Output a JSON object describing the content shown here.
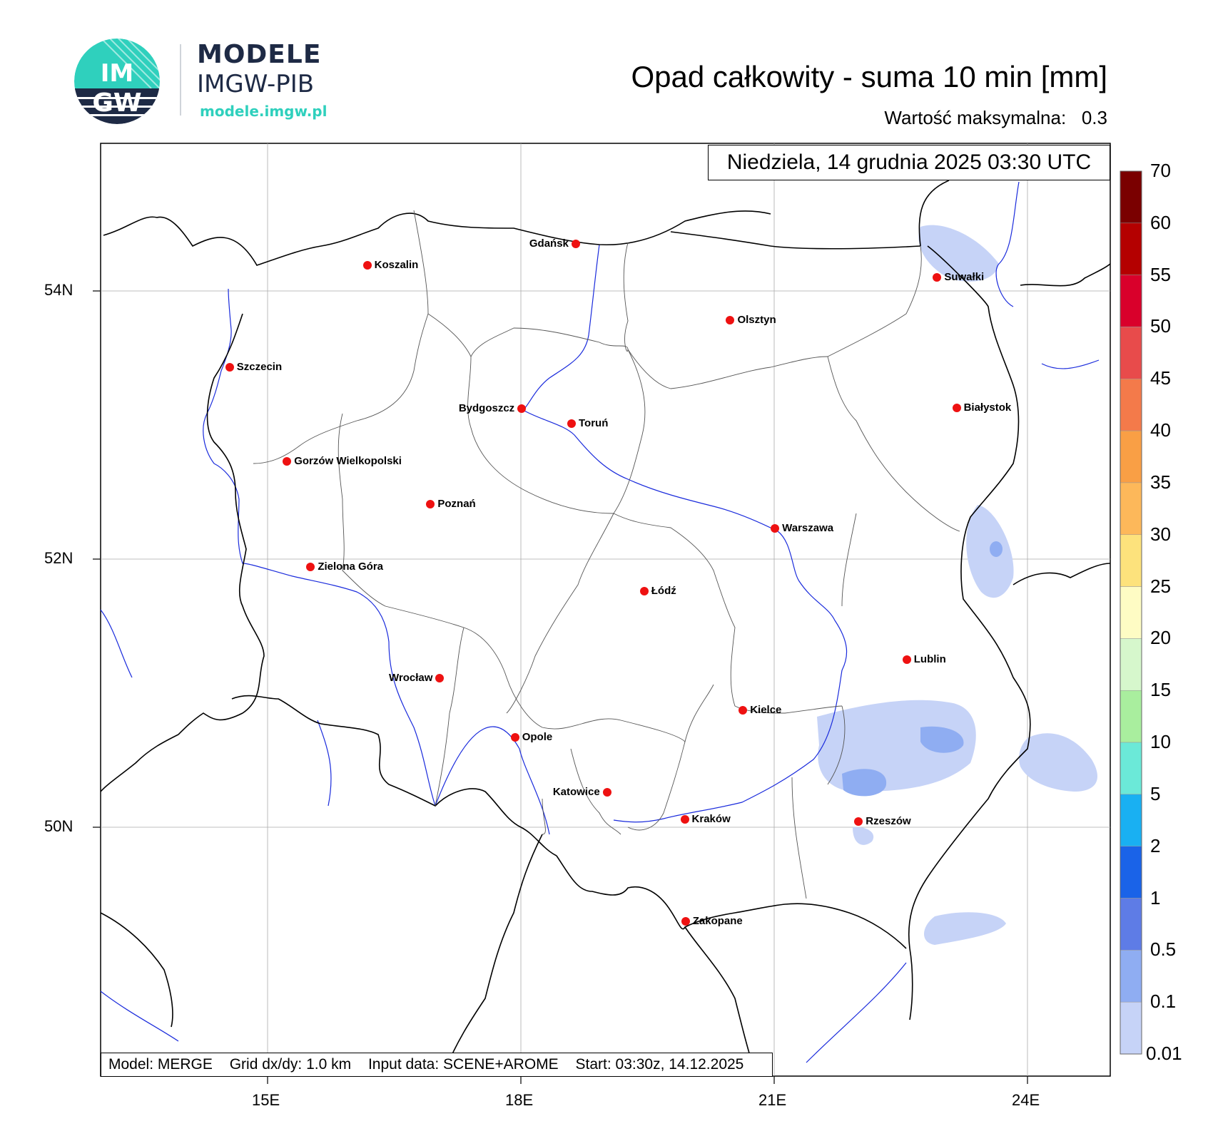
{
  "logo": {
    "mark_top": "IM",
    "mark_bottom": "GW",
    "title": "MODELE",
    "subtitle": "IMGW-PIB",
    "url": "modele.imgw.pl",
    "colors": {
      "teal": "#2fd0bd",
      "navy": "#1e2a45"
    }
  },
  "header": {
    "title": "Opad całkowity - suma 10 min [mm]",
    "max_label": "Wartość maksymalna:",
    "max_value": "0.3"
  },
  "map": {
    "datetime": "Niedziela, 14 grudnia 2025 03:30 UTC",
    "lat_labels": [
      "54N",
      "52N",
      "50N"
    ],
    "lon_labels": [
      "15E",
      "18E",
      "21E",
      "24E"
    ],
    "cities": [
      {
        "name": "Gdańsk",
        "lon": 18.65,
        "lat": 54.35
      },
      {
        "name": "Koszalin",
        "lon": 16.18,
        "lat": 54.19
      },
      {
        "name": "Szczecin",
        "lon": 14.55,
        "lat": 53.43
      },
      {
        "name": "Olsztyn",
        "lon": 20.48,
        "lat": 53.78
      },
      {
        "name": "Suwałki",
        "lon": 22.93,
        "lat": 54.1
      },
      {
        "name": "Białystok",
        "lon": 23.16,
        "lat": 53.13
      },
      {
        "name": "Bydgoszcz",
        "lon": 18.01,
        "lat": 53.12
      },
      {
        "name": "Toruń",
        "lon": 18.6,
        "lat": 53.01
      },
      {
        "name": "Gorzów Wielkopolski",
        "lon": 15.23,
        "lat": 52.73
      },
      {
        "name": "Poznań",
        "lon": 16.93,
        "lat": 52.41
      },
      {
        "name": "Warszawa",
        "lon": 21.01,
        "lat": 52.23
      },
      {
        "name": "Zielona Góra",
        "lon": 15.51,
        "lat": 51.94
      },
      {
        "name": "Łódź",
        "lon": 19.46,
        "lat": 51.76
      },
      {
        "name": "Lublin",
        "lon": 22.57,
        "lat": 51.25
      },
      {
        "name": "Wrocław",
        "lon": 17.04,
        "lat": 51.11
      },
      {
        "name": "Kielce",
        "lon": 20.63,
        "lat": 50.87
      },
      {
        "name": "Opole",
        "lon": 17.93,
        "lat": 50.67
      },
      {
        "name": "Katowice",
        "lon": 19.02,
        "lat": 50.26
      },
      {
        "name": "Rzeszów",
        "lon": 22.0,
        "lat": 50.04
      },
      {
        "name": "Kraków",
        "lon": 19.94,
        "lat": 50.06
      },
      {
        "name": "Zakopane",
        "lon": 19.95,
        "lat": 49.3
      }
    ]
  },
  "colorbar": {
    "labels": [
      "70",
      "60",
      "55",
      "50",
      "45",
      "40",
      "35",
      "30",
      "25",
      "20",
      "15",
      "10",
      "5",
      "2",
      "1",
      "0.5",
      "0.1",
      "0.01"
    ],
    "colors": [
      "#7a0000",
      "#b40000",
      "#d9002b",
      "#e84b4b",
      "#f47a4a",
      "#f99f45",
      "#fdb85a",
      "#fde27c",
      "#fefcc4",
      "#d6f7cc",
      "#a9ee9e",
      "#6be9d8",
      "#19b0f2",
      "#1a63e8",
      "#5e7ce6",
      "#8fadf2",
      "#c6d3f7"
    ]
  },
  "footer": {
    "model": "Model: MERGE",
    "grid": "Grid dx/dy: 1.0 km",
    "input": "Input data: SCENE+AROME",
    "start": "Start: 03:30z, 14.12.2025"
  }
}
